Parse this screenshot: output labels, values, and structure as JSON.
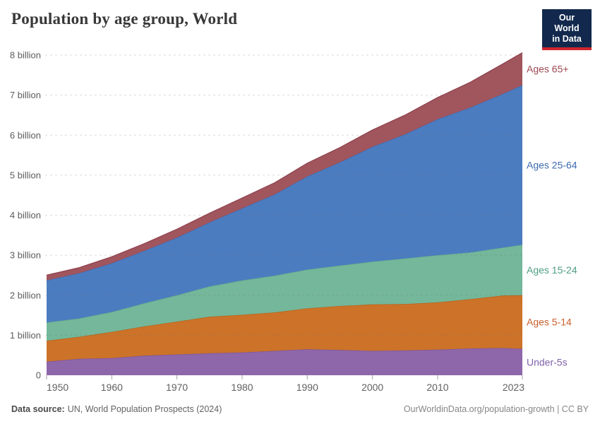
{
  "header": {
    "title": "Population by age group, World",
    "logo": {
      "line1": "Our World",
      "line2": "in Data",
      "bg": "#12294d",
      "accent": "#d0262e"
    }
  },
  "footer": {
    "source_label": "Data source:",
    "source_text": "UN, World Population Prospects (2024)",
    "credit": "OurWorldinData.org/population-growth | CC BY"
  },
  "chart_data": {
    "type": "area",
    "stacked": true,
    "title": "Population by age group, World",
    "unit": "billion people",
    "grid": true,
    "legend_position": "right",
    "x": [
      1950,
      1955,
      1960,
      1965,
      1970,
      1975,
      1980,
      1985,
      1990,
      1995,
      2000,
      2005,
      2010,
      2015,
      2020,
      2023
    ],
    "series": [
      {
        "name": "Under-5s",
        "fill": "#8e67aa",
        "line": "#7b539b",
        "label_color": "#7f62aa",
        "values": [
          0.34,
          0.41,
          0.43,
          0.49,
          0.52,
          0.55,
          0.57,
          0.61,
          0.65,
          0.63,
          0.61,
          0.62,
          0.64,
          0.67,
          0.68,
          0.66
        ]
      },
      {
        "name": "Ages 5-14",
        "fill": "#cc7329",
        "line": "#bb5e14",
        "label_color": "#ca5f2c",
        "values": [
          0.52,
          0.55,
          0.65,
          0.73,
          0.82,
          0.91,
          0.94,
          0.96,
          1.02,
          1.1,
          1.16,
          1.16,
          1.18,
          1.23,
          1.31,
          1.34
        ]
      },
      {
        "name": "Ages 15-24",
        "fill": "#74b79a",
        "line": "#5fab8a",
        "label_color": "#4f9e80",
        "values": [
          0.46,
          0.46,
          0.5,
          0.58,
          0.66,
          0.76,
          0.86,
          0.92,
          0.97,
          1.01,
          1.07,
          1.14,
          1.18,
          1.17,
          1.2,
          1.26
        ]
      },
      {
        "name": "Ages 25-64",
        "fill": "#4c7cc0",
        "line": "#3c6cb4",
        "label_color": "#3d6bb1",
        "values": [
          1.05,
          1.13,
          1.22,
          1.31,
          1.44,
          1.6,
          1.8,
          2.03,
          2.33,
          2.58,
          2.87,
          3.1,
          3.4,
          3.62,
          3.84,
          3.99
        ]
      },
      {
        "name": "Ages 65+",
        "fill": "#a1555d",
        "line": "#8f4450",
        "label_color": "#9e4851",
        "values": [
          0.13,
          0.14,
          0.16,
          0.18,
          0.21,
          0.23,
          0.26,
          0.29,
          0.33,
          0.37,
          0.42,
          0.48,
          0.54,
          0.63,
          0.75,
          0.81
        ]
      }
    ],
    "y_ticks": [
      {
        "value": 0,
        "label": "0"
      },
      {
        "value": 1,
        "label": "1 billion"
      },
      {
        "value": 2,
        "label": "2 billion"
      },
      {
        "value": 3,
        "label": "3 billion"
      },
      {
        "value": 4,
        "label": "4 billion"
      },
      {
        "value": 5,
        "label": "5 billion"
      },
      {
        "value": 6,
        "label": "6 billion"
      },
      {
        "value": 7,
        "label": "7 billion"
      },
      {
        "value": 8,
        "label": "8 billion"
      }
    ],
    "x_ticks": [
      1950,
      1960,
      1970,
      1980,
      1990,
      2000,
      2010,
      2023
    ],
    "ylim": [
      0,
      8
    ]
  }
}
